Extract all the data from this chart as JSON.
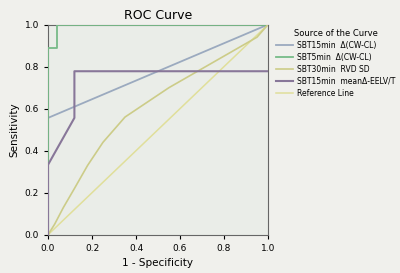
{
  "title": "ROC Curve",
  "xlabel": "1 - Specificity",
  "ylabel": "Sensitivity",
  "xlim": [
    0.0,
    1.0
  ],
  "ylim": [
    0.0,
    1.0
  ],
  "xticks": [
    0.0,
    0.2,
    0.4,
    0.6,
    0.8,
    1.0
  ],
  "yticks": [
    0.0,
    0.2,
    0.4,
    0.6,
    0.8,
    1.0
  ],
  "plot_bg_color": "#eaede8",
  "fig_bg_color": "#f0f0ec",
  "legend_title": "Source of the Curve",
  "curves": [
    {
      "label": "SBT15min  Δ(CW-CL)",
      "color": "#9baabf",
      "linewidth": 1.3,
      "x": [
        0.0,
        0.0,
        1.0
      ],
      "y": [
        0.0,
        0.556,
        1.0
      ]
    },
    {
      "label": "SBT5min  Δ(CW-CL)",
      "color": "#77bb88",
      "linewidth": 1.3,
      "x": [
        0.0,
        0.0,
        0.04,
        0.04,
        1.0
      ],
      "y": [
        0.0,
        0.889,
        0.889,
        1.0,
        1.0
      ]
    },
    {
      "label": "SBT30min  RVD SD",
      "color": "#cccc88",
      "linewidth": 1.2,
      "x": [
        0.0,
        0.03,
        0.07,
        0.12,
        0.18,
        0.25,
        0.35,
        0.45,
        0.55,
        0.65,
        0.75,
        0.85,
        0.95,
        1.0
      ],
      "y": [
        0.0,
        0.05,
        0.13,
        0.22,
        0.33,
        0.44,
        0.56,
        0.63,
        0.7,
        0.76,
        0.82,
        0.88,
        0.94,
        1.0
      ]
    },
    {
      "label": "SBT15min  meanΔ-EELV/T",
      "color": "#887799",
      "linewidth": 1.5,
      "x": [
        0.0,
        0.0,
        0.0,
        0.12,
        0.12,
        0.22,
        0.22,
        0.27,
        0.27,
        1.0
      ],
      "y": [
        0.0,
        0.333,
        0.333,
        0.556,
        0.778,
        0.778,
        0.778,
        0.778,
        0.778,
        0.778
      ]
    },
    {
      "label": "Reference Line",
      "color": "#e0df9a",
      "linewidth": 1.1,
      "x": [
        0.0,
        1.0
      ],
      "y": [
        0.0,
        1.0
      ]
    }
  ]
}
